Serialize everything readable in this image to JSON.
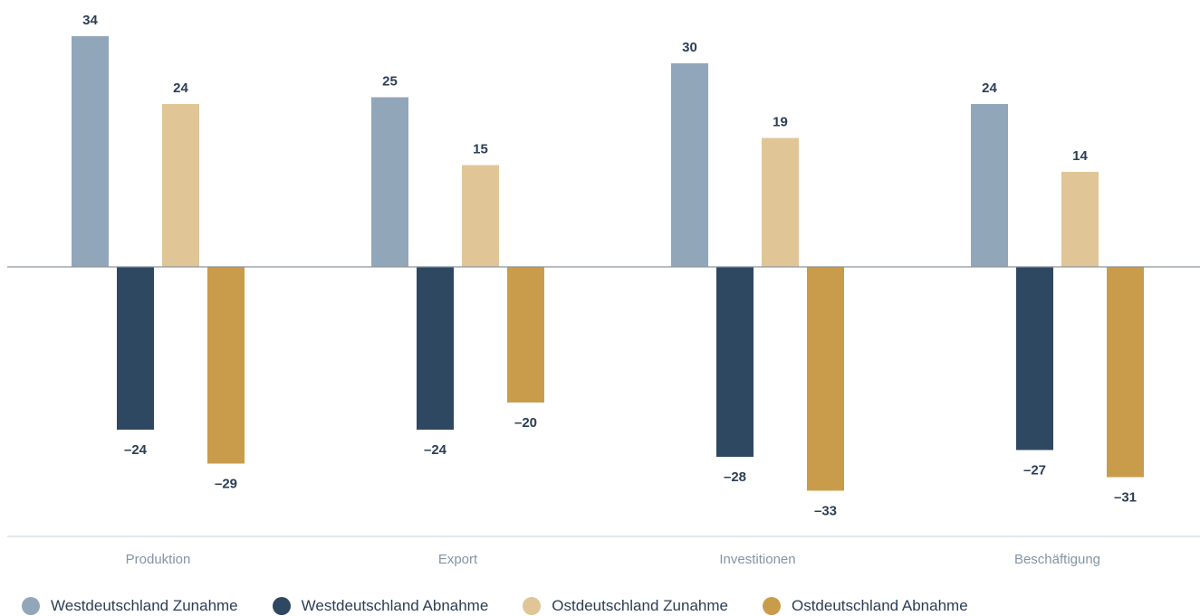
{
  "colors": {
    "west_up": "#92a6ba",
    "west_down": "#2e4862",
    "east_up": "#e0c696",
    "east_down": "#c99c4c",
    "label": "#2c3e55",
    "axis": "#8a939e",
    "category": "#8494a6",
    "divider": "#c5d1de"
  },
  "chart_data": {
    "type": "bar",
    "categories": [
      "Produktion",
      "Export",
      "Investitionen",
      "Beschäftigung"
    ],
    "series": [
      {
        "name": "Westdeutschland Zunahme",
        "values": [
          34,
          25,
          30,
          24
        ],
        "labels": [
          "34",
          "25",
          "30",
          "24"
        ]
      },
      {
        "name": "Westdeutschland Abnahme",
        "values": [
          -24,
          -24,
          -28,
          -27
        ],
        "labels": [
          "–24",
          "–24",
          "–28",
          "–27"
        ]
      },
      {
        "name": "Ostdeutschland Zunahme",
        "values": [
          24,
          15,
          19,
          14
        ],
        "labels": [
          "24",
          "15",
          "19",
          "14"
        ]
      },
      {
        "name": "Ostdeutschland Abnahme",
        "values": [
          -29,
          -20,
          -33,
          -31
        ],
        "labels": [
          "–29",
          "–20",
          "–33",
          "–31"
        ]
      }
    ],
    "grid": false,
    "legend": "bottom-left"
  }
}
